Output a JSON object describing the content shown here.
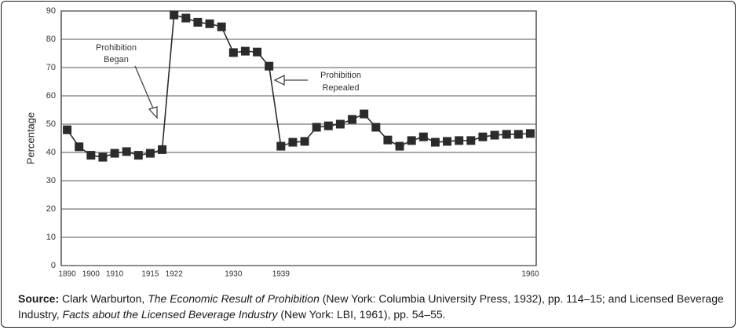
{
  "chart_data": {
    "type": "line",
    "ylabel": "Percentage",
    "categories": [
      "1890",
      null,
      "1900",
      null,
      "1910",
      null,
      null,
      "1915",
      null,
      "1922",
      null,
      null,
      null,
      null,
      "1930",
      null,
      null,
      null,
      "1939",
      null,
      null,
      null,
      null,
      null,
      null,
      null,
      null,
      null,
      null,
      null,
      null,
      null,
      null,
      null,
      null,
      null,
      null,
      null,
      null,
      "1960"
    ],
    "values": [
      48,
      42,
      39,
      38.3,
      39.7,
      40.3,
      39,
      39.7,
      41,
      88.6,
      87.5,
      86,
      85.5,
      84.4,
      75.3,
      75.8,
      75.5,
      70.5,
      42.2,
      43.6,
      43.9,
      48.9,
      49.4,
      50,
      51.7,
      53.6,
      48.9,
      44.4,
      42.2,
      44.2,
      45.5,
      43.6,
      43.9,
      44.2,
      44.2,
      45.5,
      46.1,
      46.4,
      46.4,
      46.7
    ],
    "color": "#2b2b2b",
    "ylim": [
      0,
      90
    ],
    "yticks": [
      0,
      10,
      20,
      30,
      40,
      50,
      60,
      70,
      80,
      90
    ],
    "grid": true,
    "annotations": [
      {
        "lines": [
          "Prohibition",
          "Began"
        ]
      },
      {
        "lines": [
          "Prohibition",
          "Repealed"
        ]
      }
    ]
  },
  "source": {
    "label": "Source:",
    "parts": [
      "Clark Warburton, ",
      "The Economic Result of Prohibition",
      " (New York: Columbia University Press, 1932), pp. 114–15; and Licensed Beverage Industry, ",
      "Facts about the Licensed Beverage Industry",
      " (New York: LBI, 1961), pp. 54–55."
    ]
  }
}
